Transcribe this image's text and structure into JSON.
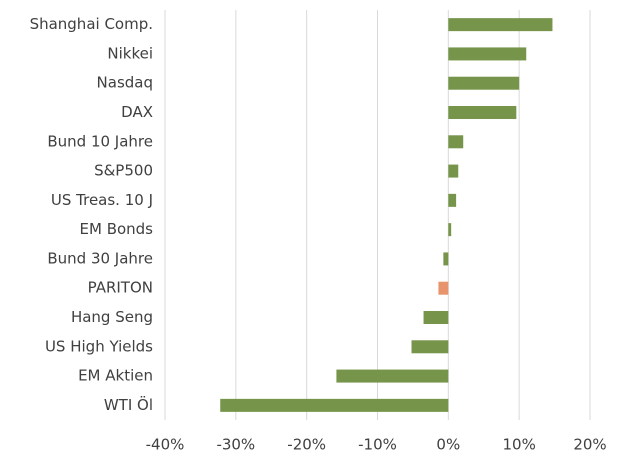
{
  "chart_data": {
    "type": "bar",
    "orientation": "horizontal",
    "categories": [
      "Shanghai Comp.",
      "Nikkei",
      "Nasdaq",
      "DAX",
      "Bund 10 Jahre",
      "S&P500",
      "US Treas. 10 J",
      "EM Bonds",
      "Bund 30 Jahre",
      "PARITON",
      "Hang Seng",
      "US High Yields",
      "EM Aktien",
      "WTI Öl"
    ],
    "values": [
      14.7,
      11.0,
      10.0,
      9.6,
      2.1,
      1.4,
      1.1,
      0.4,
      -0.7,
      -1.4,
      -3.5,
      -5.2,
      -15.8,
      -32.2
    ],
    "colors": [
      "#76944a",
      "#76944a",
      "#76944a",
      "#76944a",
      "#76944a",
      "#76944a",
      "#76944a",
      "#76944a",
      "#76944a",
      "#e8956d",
      "#76944a",
      "#76944a",
      "#76944a",
      "#76944a"
    ],
    "xlim": [
      -40,
      20
    ],
    "xticks": [
      {
        "value": -40,
        "label": "-40%"
      },
      {
        "value": -30,
        "label": "-30%"
      },
      {
        "value": -20,
        "label": "-20%"
      },
      {
        "value": -10,
        "label": "-10%"
      },
      {
        "value": 0,
        "label": "0%"
      },
      {
        "value": 10,
        "label": "10%"
      },
      {
        "value": 20,
        "label": "20%"
      }
    ],
    "grid": true
  }
}
